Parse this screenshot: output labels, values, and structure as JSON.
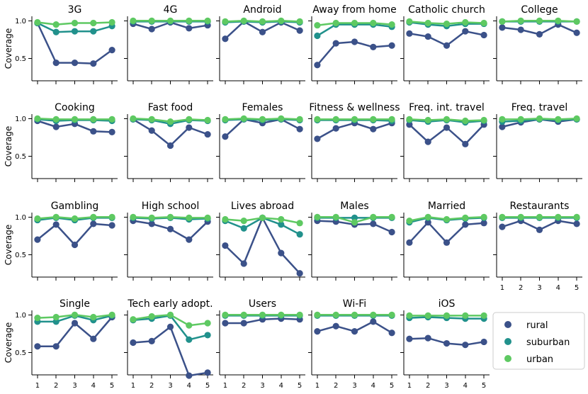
{
  "chart_data": {
    "type": "line",
    "ylabel": "Coverage",
    "x": [
      1,
      2,
      3,
      4,
      5
    ],
    "ylim": [
      0.2,
      1.06
    ],
    "yticks": [
      0.5,
      1.0
    ],
    "ytick_labels": [
      "0.5",
      "1.0"
    ],
    "xtick_labels": [
      "1",
      "2",
      "3",
      "4",
      "5"
    ],
    "series_names": [
      "rural",
      "suburban",
      "urban"
    ],
    "colors": {
      "rural": "#3b5189",
      "suburban": "#21918c",
      "urban": "#5ec962"
    },
    "legend": {
      "position": "bottom-right",
      "labels": [
        "rural",
        "suburban",
        "urban"
      ]
    },
    "panels": [
      {
        "title": "3G",
        "rural": [
          0.97,
          0.44,
          0.44,
          0.43,
          0.61
        ],
        "suburban": [
          0.97,
          0.85,
          0.86,
          0.86,
          0.93
        ],
        "urban": [
          0.98,
          0.95,
          0.97,
          0.97,
          0.98
        ]
      },
      {
        "title": "4G",
        "rural": [
          0.96,
          0.89,
          0.98,
          0.9,
          0.94
        ],
        "suburban": [
          0.99,
          0.99,
          0.99,
          0.99,
          0.99
        ],
        "urban": [
          1.0,
          1.0,
          1.0,
          1.0,
          1.0
        ]
      },
      {
        "title": "Android",
        "rural": [
          0.76,
          0.99,
          0.85,
          0.98,
          0.87
        ],
        "suburban": [
          0.98,
          0.99,
          0.98,
          0.99,
          0.98
        ],
        "urban": [
          0.99,
          1.0,
          0.99,
          1.0,
          0.99
        ]
      },
      {
        "title": "Away from home",
        "rural": [
          0.41,
          0.7,
          0.72,
          0.65,
          0.67
        ],
        "suburban": [
          0.8,
          0.95,
          0.95,
          0.95,
          0.92
        ],
        "urban": [
          0.94,
          0.97,
          0.97,
          0.97,
          0.95
        ]
      },
      {
        "title": "Catholic church",
        "rural": [
          0.83,
          0.79,
          0.67,
          0.86,
          0.81
        ],
        "suburban": [
          0.98,
          0.95,
          0.93,
          0.96,
          0.96
        ],
        "urban": [
          0.99,
          0.97,
          0.96,
          0.98,
          0.97
        ]
      },
      {
        "title": "College",
        "rural": [
          0.91,
          0.88,
          0.82,
          0.95,
          0.84
        ],
        "suburban": [
          0.99,
          0.99,
          0.99,
          0.99,
          0.99
        ],
        "urban": [
          0.99,
          1.0,
          1.0,
          1.0,
          0.99
        ]
      },
      {
        "title": "Cooking",
        "rural": [
          0.97,
          0.89,
          0.93,
          0.83,
          0.82
        ],
        "suburban": [
          0.99,
          0.97,
          0.98,
          0.98,
          0.97
        ],
        "urban": [
          1.0,
          0.99,
          0.99,
          0.99,
          0.99
        ]
      },
      {
        "title": "Fast food",
        "rural": [
          0.99,
          0.84,
          0.64,
          0.88,
          0.79
        ],
        "suburban": [
          0.99,
          0.98,
          0.93,
          0.98,
          0.97
        ],
        "urban": [
          1.0,
          0.99,
          0.96,
          0.99,
          0.98
        ]
      },
      {
        "title": "Females",
        "rural": [
          0.76,
          0.99,
          0.94,
          0.99,
          0.86
        ],
        "suburban": [
          0.98,
          0.99,
          0.98,
          0.99,
          0.98
        ],
        "urban": [
          0.99,
          1.0,
          0.99,
          1.0,
          0.99
        ]
      },
      {
        "title": "Fitness & wellness",
        "rural": [
          0.73,
          0.87,
          0.94,
          0.86,
          0.94
        ],
        "suburban": [
          0.98,
          0.98,
          0.98,
          0.98,
          0.97
        ],
        "urban": [
          0.99,
          0.99,
          0.99,
          0.99,
          0.99
        ]
      },
      {
        "title": "Freq. int. travel",
        "rural": [
          0.92,
          0.69,
          0.88,
          0.66,
          0.92
        ],
        "suburban": [
          0.98,
          0.96,
          0.98,
          0.95,
          0.97
        ],
        "urban": [
          0.99,
          0.98,
          0.99,
          0.97,
          0.98
        ]
      },
      {
        "title": "Freq. travel",
        "rural": [
          0.89,
          0.95,
          0.99,
          0.96,
          0.99
        ],
        "suburban": [
          0.96,
          0.97,
          0.99,
          0.98,
          0.99
        ],
        "urban": [
          0.99,
          0.99,
          1.0,
          0.99,
          1.0
        ]
      },
      {
        "title": "Gambling",
        "rural": [
          0.7,
          0.9,
          0.63,
          0.91,
          0.89
        ],
        "suburban": [
          0.96,
          0.99,
          0.96,
          0.99,
          0.99
        ],
        "urban": [
          0.98,
          1.0,
          0.98,
          1.0,
          1.0
        ]
      },
      {
        "title": "High school",
        "rural": [
          0.95,
          0.91,
          0.84,
          0.7,
          0.94
        ],
        "suburban": [
          0.99,
          0.98,
          0.99,
          0.97,
          0.98
        ],
        "urban": [
          1.0,
          0.99,
          1.0,
          0.99,
          0.99
        ]
      },
      {
        "title": "Lives abroad",
        "rural": [
          0.62,
          0.38,
          0.99,
          0.52,
          0.25
        ],
        "suburban": [
          0.95,
          0.85,
          0.99,
          0.9,
          0.77
        ],
        "urban": [
          0.97,
          0.95,
          0.99,
          0.97,
          0.92
        ]
      },
      {
        "title": "Males",
        "rural": [
          0.95,
          0.94,
          0.9,
          0.91,
          0.8
        ],
        "suburban": [
          0.99,
          0.99,
          0.99,
          0.99,
          0.99
        ],
        "urban": [
          1.0,
          1.0,
          0.93,
          1.0,
          1.0
        ]
      },
      {
        "title": "Married",
        "rural": [
          0.66,
          0.93,
          0.66,
          0.9,
          0.92
        ],
        "suburban": [
          0.93,
          0.99,
          0.96,
          0.98,
          0.99
        ],
        "urban": [
          0.95,
          1.0,
          0.97,
          0.99,
          1.0
        ]
      },
      {
        "title": "Restaurants",
        "rural": [
          0.87,
          0.95,
          0.83,
          0.95,
          0.91
        ],
        "suburban": [
          0.99,
          0.99,
          0.99,
          0.99,
          0.99
        ],
        "urban": [
          1.0,
          1.0,
          1.0,
          1.0,
          1.0
        ]
      },
      {
        "title": "Single",
        "rural": [
          0.58,
          0.58,
          0.89,
          0.68,
          0.97
        ],
        "suburban": [
          0.91,
          0.91,
          0.99,
          0.93,
          0.99
        ],
        "urban": [
          0.96,
          0.97,
          1.0,
          0.97,
          1.0
        ]
      },
      {
        "title": "Tech early adopt.",
        "rural": [
          0.63,
          0.65,
          0.84,
          0.19,
          0.23
        ],
        "suburban": [
          0.93,
          0.95,
          0.99,
          0.67,
          0.73
        ],
        "urban": [
          0.94,
          0.98,
          1.0,
          0.86,
          0.89
        ]
      },
      {
        "title": "Users",
        "rural": [
          0.89,
          0.89,
          0.94,
          0.95,
          0.94
        ],
        "suburban": [
          0.99,
          0.99,
          0.99,
          0.99,
          0.99
        ],
        "urban": [
          1.0,
          1.0,
          1.0,
          1.0,
          1.0
        ]
      },
      {
        "title": "Wi-Fi",
        "rural": [
          0.78,
          0.85,
          0.78,
          0.91,
          0.76
        ],
        "suburban": [
          0.99,
          0.99,
          0.99,
          0.99,
          0.99
        ],
        "urban": [
          1.0,
          1.0,
          1.0,
          1.0,
          1.0
        ]
      },
      {
        "title": "iOS",
        "rural": [
          0.68,
          0.69,
          0.62,
          0.6,
          0.64
        ],
        "suburban": [
          0.96,
          0.97,
          0.96,
          0.95,
          0.95
        ],
        "urban": [
          0.99,
          0.99,
          0.99,
          0.99,
          0.99
        ]
      }
    ]
  }
}
